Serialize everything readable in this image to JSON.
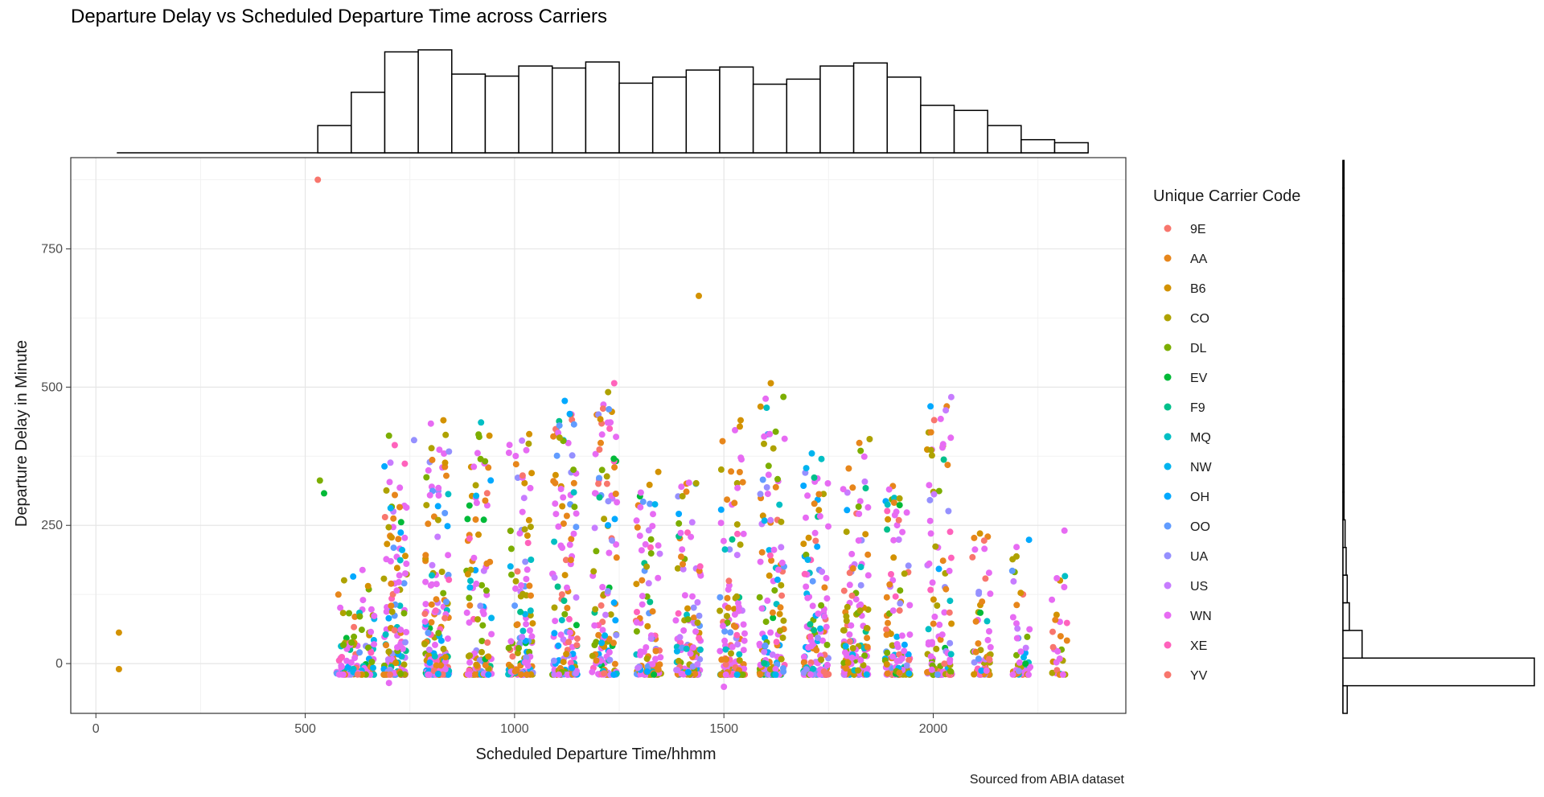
{
  "chart_data": {
    "type": "scatter",
    "title": "Departure Delay vs Scheduled Departure Time across Carriers",
    "xlabel": "Scheduled Departure Time/hhmm",
    "ylabel": "Departure Delay in Minute",
    "caption": "Sourced from ABIA dataset",
    "xlim": [
      -60,
      2460
    ],
    "ylim": [
      -90,
      915
    ],
    "x_ticks": [
      0,
      500,
      1000,
      1500,
      2000
    ],
    "y_ticks": [
      0,
      250,
      500,
      750
    ],
    "grid": true,
    "legend": {
      "title": "Unique Carrier Code",
      "placement": "right",
      "entries": [
        {
          "name": "9E",
          "color": "#F8766D"
        },
        {
          "name": "AA",
          "color": "#E7861B"
        },
        {
          "name": "B6",
          "color": "#D39200"
        },
        {
          "name": "CO",
          "color": "#AEA200"
        },
        {
          "name": "DL",
          "color": "#7CAE00"
        },
        {
          "name": "EV",
          "color": "#00BA38"
        },
        {
          "name": "F9",
          "color": "#00C08B"
        },
        {
          "name": "MQ",
          "color": "#00BFC4"
        },
        {
          "name": "NW",
          "color": "#00B4EF"
        },
        {
          "name": "OH",
          "color": "#00A9FF"
        },
        {
          "name": "OO",
          "color": "#619CFF"
        },
        {
          "name": "UA",
          "color": "#9590FF"
        },
        {
          "name": "US",
          "color": "#C77CFF"
        },
        {
          "name": "WN",
          "color": "#E76BF3"
        },
        {
          "name": "XE",
          "color": "#FF62BC"
        },
        {
          "name": "YV",
          "color": "#F8766D"
        }
      ]
    },
    "hour_clusters": [
      {
        "x": 600,
        "width": 50,
        "count": 60,
        "maxDelay": 160
      },
      {
        "x": 645,
        "width": 40,
        "count": 50,
        "maxDelay": 200
      },
      {
        "x": 715,
        "width": 55,
        "count": 160,
        "maxDelay": 410
      },
      {
        "x": 815,
        "width": 60,
        "count": 170,
        "maxDelay": 440
      },
      {
        "x": 915,
        "width": 60,
        "count": 120,
        "maxDelay": 430
      },
      {
        "x": 1015,
        "width": 60,
        "count": 130,
        "maxDelay": 415
      },
      {
        "x": 1120,
        "width": 60,
        "count": 150,
        "maxDelay": 475
      },
      {
        "x": 1215,
        "width": 60,
        "count": 130,
        "maxDelay": 505
      },
      {
        "x": 1320,
        "width": 60,
        "count": 120,
        "maxDelay": 350
      },
      {
        "x": 1415,
        "width": 60,
        "count": 130,
        "maxDelay": 330
      },
      {
        "x": 1520,
        "width": 60,
        "count": 150,
        "maxDelay": 440
      },
      {
        "x": 1615,
        "width": 60,
        "count": 140,
        "maxDelay": 505
      },
      {
        "x": 1720,
        "width": 60,
        "count": 150,
        "maxDelay": 380
      },
      {
        "x": 1815,
        "width": 60,
        "count": 140,
        "maxDelay": 405
      },
      {
        "x": 1915,
        "width": 60,
        "count": 120,
        "maxDelay": 340
      },
      {
        "x": 2015,
        "width": 60,
        "count": 110,
        "maxDelay": 480
      },
      {
        "x": 2115,
        "width": 45,
        "count": 60,
        "maxDelay": 265
      },
      {
        "x": 2210,
        "width": 45,
        "count": 45,
        "maxDelay": 250
      },
      {
        "x": 2300,
        "width": 40,
        "count": 30,
        "maxDelay": 250
      }
    ],
    "outliers": [
      {
        "x": 530,
        "y": 875,
        "carrier": "9E"
      },
      {
        "x": 1440,
        "y": 665,
        "carrier": "B6"
      },
      {
        "x": 1238,
        "y": 507,
        "carrier": "XE"
      },
      {
        "x": 1120,
        "y": 475,
        "carrier": "OH"
      },
      {
        "x": 1612,
        "y": 507,
        "carrier": "B6"
      },
      {
        "x": 2043,
        "y": 482,
        "carrier": "US"
      },
      {
        "x": 2030,
        "y": 458,
        "carrier": "US"
      },
      {
        "x": 830,
        "y": 440,
        "carrier": "B6"
      },
      {
        "x": 1035,
        "y": 415,
        "carrier": "B6"
      },
      {
        "x": 1540,
        "y": 440,
        "carrier": "B6"
      },
      {
        "x": 1205,
        "y": 442,
        "carrier": "B6"
      },
      {
        "x": 920,
        "y": 436,
        "carrier": "MQ"
      },
      {
        "x": 700,
        "y": 412,
        "carrier": "DL"
      },
      {
        "x": 760,
        "y": 404,
        "carrier": "UA"
      },
      {
        "x": 940,
        "y": 412,
        "carrier": "B6"
      },
      {
        "x": 1848,
        "y": 406,
        "carrier": "CO"
      },
      {
        "x": 1995,
        "y": 386,
        "carrier": "CO"
      },
      {
        "x": 1710,
        "y": 380,
        "carrier": "NW"
      },
      {
        "x": 1733,
        "y": 370,
        "carrier": "MQ"
      },
      {
        "x": 535,
        "y": 331,
        "carrier": "DL"
      },
      {
        "x": 545,
        "y": 308,
        "carrier": "EV"
      },
      {
        "x": 55,
        "y": 56,
        "carrier": "B6"
      },
      {
        "x": 55,
        "y": -10,
        "carrier": "B6"
      },
      {
        "x": 700,
        "y": -35,
        "carrier": "WN"
      },
      {
        "x": 1500,
        "y": -42,
        "carrier": "WN"
      }
    ],
    "top_histogram": {
      "bins": [
        50,
        130,
        210,
        290,
        370,
        450,
        530,
        610,
        690,
        770,
        850,
        930,
        1010,
        1090,
        1170,
        1250,
        1330,
        1410,
        1490,
        1570,
        1650,
        1730,
        1810,
        1890,
        1970,
        2050,
        2130,
        2210,
        2290,
        2370
      ],
      "counts": [
        0,
        0,
        0,
        0,
        0,
        0,
        27,
        60,
        100,
        102,
        78,
        76,
        86,
        84,
        90,
        69,
        75,
        82,
        85,
        68,
        73,
        86,
        89,
        75,
        47,
        42,
        27,
        13,
        10,
        3
      ]
    },
    "right_histogram": {
      "bins": [
        -90,
        -40,
        10,
        60,
        110,
        160,
        210,
        260,
        310,
        360,
        410,
        460,
        510,
        560,
        610,
        660,
        710,
        760,
        810,
        860,
        910
      ],
      "counts": [
        4,
        180,
        18,
        6,
        4,
        3,
        2,
        1,
        1,
        1,
        1,
        1,
        1,
        1,
        1,
        1,
        1,
        1,
        1,
        1
      ]
    }
  }
}
